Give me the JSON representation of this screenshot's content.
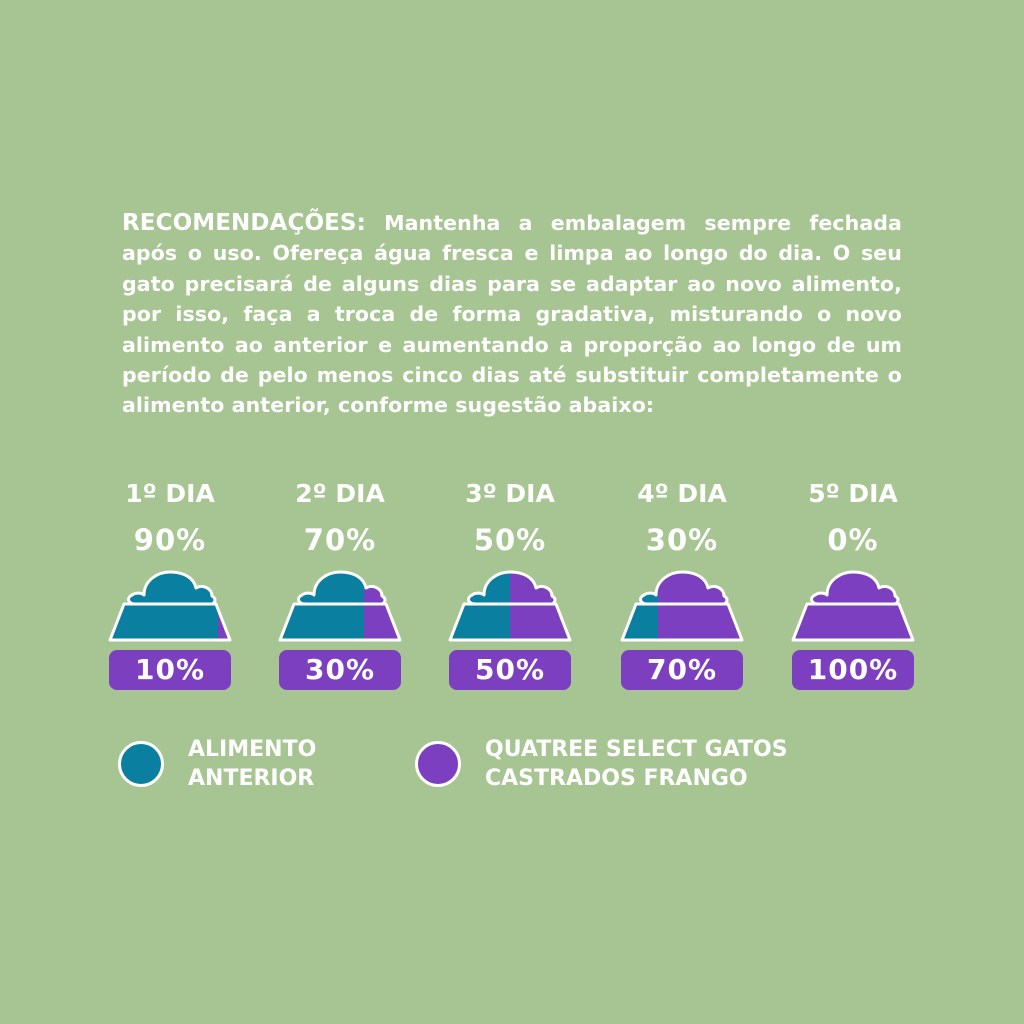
{
  "recommendations": {
    "heading": "RECOMENDAÇÕES:",
    "body": "Mantenha a embalagem sempre fechada após o uso. Ofereça água fresca e limpa ao longo do dia. O seu gato precisará de alguns dias para se adaptar ao novo alimento, por isso, faça a troca de forma gradativa, misturando o novo alimento ao anterior e aumentando a proporção ao longo de um período de pelo menos cinco dias até substituir completamente o alimento anterior, conforme sugestão abaixo:"
  },
  "colors": {
    "background": "#a7c592",
    "previous_food": "#0a7fa0",
    "new_food": "#7b3fc0"
  },
  "days": [
    {
      "label": "1º DIA",
      "previous_pct": "90%",
      "new_pct": "10%",
      "new_fraction": 0.1
    },
    {
      "label": "2º DIA",
      "previous_pct": "70%",
      "new_pct": "30%",
      "new_fraction": 0.3
    },
    {
      "label": "3º DIA",
      "previous_pct": "50%",
      "new_pct": "50%",
      "new_fraction": 0.5
    },
    {
      "label": "4º DIA",
      "previous_pct": "30%",
      "new_pct": "70%",
      "new_fraction": 0.7
    },
    {
      "label": "5º DIA",
      "previous_pct": "0%",
      "new_pct": "100%",
      "new_fraction": 1.0
    }
  ],
  "legend": {
    "previous": {
      "line1": "ALIMENTO",
      "line2": "ANTERIOR"
    },
    "new": {
      "line1": "QUATREE SELECT GATOS",
      "line2": "CASTRADOS FRANGO"
    }
  }
}
